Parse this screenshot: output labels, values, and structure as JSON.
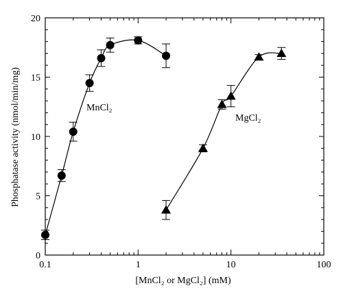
{
  "chart_data": {
    "type": "scatter",
    "title": "",
    "xlabel": "[MnCl₂ or MgCl₂] (mM)",
    "ylabel": "Phosphatase activity (nmol/min/mg)",
    "xscale": "log",
    "xlim": [
      0.1,
      100
    ],
    "ylim": [
      0,
      20
    ],
    "x_ticks": [
      0.1,
      1,
      10,
      100
    ],
    "x_tick_labels": [
      "0.1",
      "1",
      "10",
      "100"
    ],
    "y_ticks": [
      0,
      5,
      10,
      15,
      20
    ],
    "y_tick_labels": [
      "0",
      "5",
      "10",
      "15",
      "20"
    ],
    "grid": false,
    "series": [
      {
        "name": "MnCl₂",
        "marker": "circle",
        "color": "#000000",
        "points": [
          {
            "x": 0.1,
            "y": 1.7,
            "err": 0.4
          },
          {
            "x": 0.15,
            "y": 6.7,
            "err": 0.5
          },
          {
            "x": 0.2,
            "y": 10.4,
            "err": 0.8
          },
          {
            "x": 0.3,
            "y": 14.5,
            "err": 0.7
          },
          {
            "x": 0.4,
            "y": 16.6,
            "err": 0.7
          },
          {
            "x": 0.5,
            "y": 17.7,
            "err": 0.6
          },
          {
            "x": 1,
            "y": 18.1,
            "err": 0.3
          },
          {
            "x": 2,
            "y": 16.8,
            "err": 1.0
          }
        ]
      },
      {
        "name": "MgCl₂",
        "marker": "triangle",
        "color": "#000000",
        "points": [
          {
            "x": 2,
            "y": 3.8,
            "err": 0.8
          },
          {
            "x": 5,
            "y": 9.0,
            "err": 0.3
          },
          {
            "x": 8,
            "y": 12.7,
            "err": 0.4
          },
          {
            "x": 10,
            "y": 13.4,
            "err": 0.9
          },
          {
            "x": 20,
            "y": 16.7,
            "err": 0.2
          },
          {
            "x": 35,
            "y": 17.0,
            "err": 0.5
          }
        ]
      }
    ]
  }
}
